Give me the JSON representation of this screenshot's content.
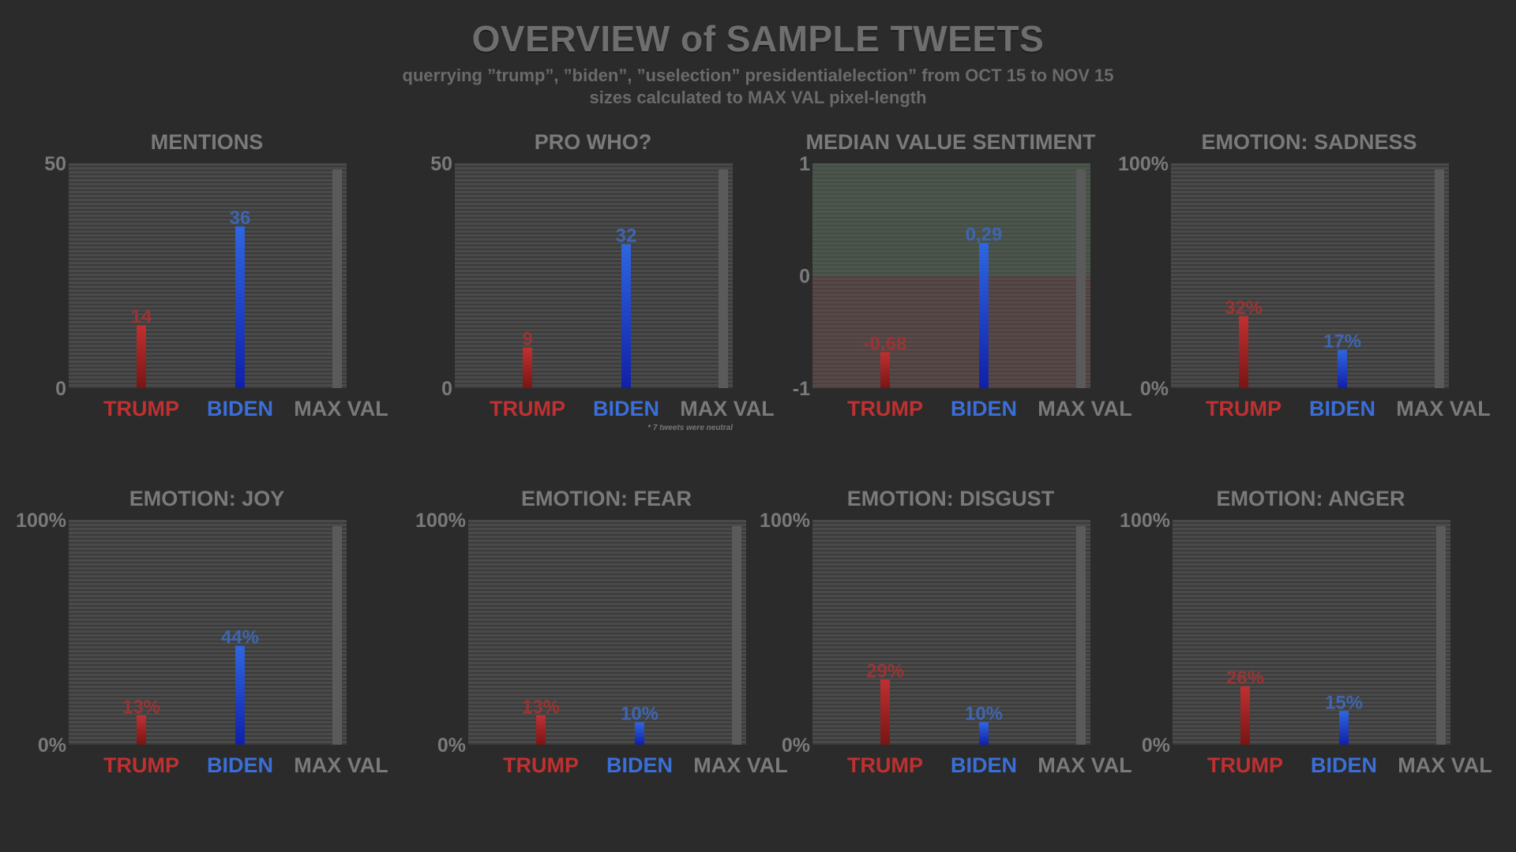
{
  "page": {
    "title": "OVERVIEW of SAMPLE TWEETS",
    "subtitle_line1": "querrying ”trump”, ”biden”, ”uselection” presidentialelection” from OCT 15 to NOV 15",
    "subtitle_line2": "sizes calculated to MAX VAL pixel-length"
  },
  "colors": {
    "background": "#2b2b2b",
    "plot_area": "#4a4a4a",
    "trump": "#b02a2a",
    "trump_label": "#c03030",
    "biden": "#2a5fd0",
    "biden_label": "#3a6ed8",
    "maxval": "#5a5a5a",
    "axis_text": "#7a7a7a",
    "positive_zone": "#4f6650",
    "negative_zone": "#6a4848"
  },
  "chart_data": [
    {
      "type": "bar",
      "title": "MENTIONS",
      "categories": [
        "TRUMP",
        "BIDEN",
        "MAX VAL"
      ],
      "values": [
        14,
        36,
        50
      ],
      "value_labels": [
        "14",
        "36",
        ""
      ],
      "ylim": [
        0,
        50
      ],
      "yticks": [
        "0",
        "50"
      ]
    },
    {
      "type": "bar",
      "title": "PRO WHO?",
      "categories": [
        "TRUMP",
        "BIDEN",
        "MAX VAL"
      ],
      "values": [
        9,
        32,
        50
      ],
      "value_labels": [
        "9",
        "32",
        ""
      ],
      "ylim": [
        0,
        50
      ],
      "yticks": [
        "0",
        "50"
      ],
      "footnote": "* 7 tweets were neutral"
    },
    {
      "type": "bar",
      "title": "MEDIAN VALUE SENTIMENT",
      "categories": [
        "TRUMP",
        "BIDEN",
        "MAX VAL"
      ],
      "values": [
        -0.68,
        0.29,
        1
      ],
      "value_labels": [
        "-0,68",
        "0,29",
        ""
      ],
      "ylim": [
        -1,
        1
      ],
      "yticks": [
        "-1",
        "0",
        "1"
      ],
      "zones": true
    },
    {
      "type": "bar",
      "title": "EMOTION: SADNESS",
      "categories": [
        "TRUMP",
        "BIDEN",
        "MAX VAL"
      ],
      "values": [
        32,
        17,
        100
      ],
      "value_labels": [
        "32%",
        "17%",
        ""
      ],
      "ylim": [
        0,
        100
      ],
      "yticks": [
        "0%",
        "100%"
      ]
    },
    {
      "type": "bar",
      "title": "EMOTION: JOY",
      "categories": [
        "TRUMP",
        "BIDEN",
        "MAX VAL"
      ],
      "values": [
        13,
        44,
        100
      ],
      "value_labels": [
        "13%",
        "44%",
        ""
      ],
      "ylim": [
        0,
        100
      ],
      "yticks": [
        "0%",
        "100%"
      ]
    },
    {
      "type": "bar",
      "title": "EMOTION: FEAR",
      "categories": [
        "TRUMP",
        "BIDEN",
        "MAX VAL"
      ],
      "values": [
        13,
        10,
        100
      ],
      "value_labels": [
        "13%",
        "10%",
        ""
      ],
      "ylim": [
        0,
        100
      ],
      "yticks": [
        "0%",
        "100%"
      ]
    },
    {
      "type": "bar",
      "title": "EMOTION: DISGUST",
      "categories": [
        "TRUMP",
        "BIDEN",
        "MAX VAL"
      ],
      "values": [
        29,
        10,
        100
      ],
      "value_labels": [
        "29%",
        "10%",
        ""
      ],
      "ylim": [
        0,
        100
      ],
      "yticks": [
        "0%",
        "100%"
      ]
    },
    {
      "type": "bar",
      "title": "EMOTION: ANGER",
      "categories": [
        "TRUMP",
        "BIDEN",
        "MAX VAL"
      ],
      "values": [
        26,
        15,
        100
      ],
      "value_labels": [
        "26%",
        "15%",
        ""
      ],
      "ylim": [
        0,
        100
      ],
      "yticks": [
        "0%",
        "100%"
      ]
    }
  ]
}
